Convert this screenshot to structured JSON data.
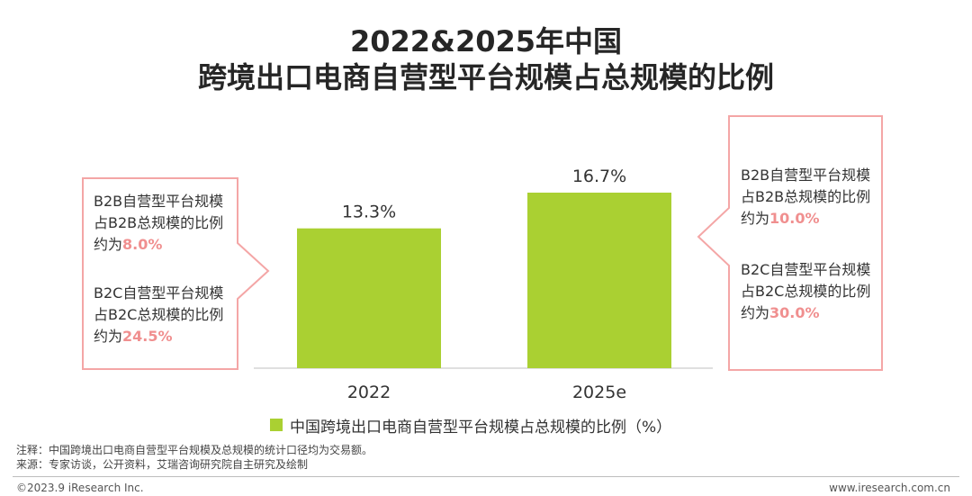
{
  "title": {
    "line1": "2022&2025年中国",
    "line2": "跨境出口电商自营型平台规模占总规模的比例"
  },
  "chart_data": {
    "type": "bar",
    "categories": [
      "2022",
      "2025e"
    ],
    "values": [
      13.3,
      16.7
    ],
    "data_labels": [
      "13.3%",
      "16.7%"
    ],
    "series": [
      {
        "name": "中国跨境出口电商自营型平台规模占总规模的比例（%）",
        "values": [
          13.3,
          16.7
        ]
      }
    ],
    "ylim": [
      0,
      20
    ],
    "grid": false,
    "legend": "bottom",
    "bar_color": "#aad032"
  },
  "callouts": {
    "left": {
      "b2b_line1": "B2B自营型平台规模",
      "b2b_line2": "占B2B总规模的比例",
      "b2b_prefix": "约为",
      "b2b_value": "8.0%",
      "b2c_line1": "B2C自营型平台规模",
      "b2c_line2": "占B2C总规模的比例",
      "b2c_prefix": "约为",
      "b2c_value": "24.5%"
    },
    "right": {
      "b2b_line1": "B2B自营型平台规模",
      "b2b_line2": "占B2B总规模的比例",
      "b2b_prefix": "约为",
      "b2b_value": "10.0%",
      "b2c_line1": "B2C自营型平台规模",
      "b2c_line2": "占B2C总规模的比例",
      "b2c_prefix": "约为",
      "b2c_value": "30.0%"
    },
    "border_color": "#f4a6a6",
    "highlight_color": "#f08f8f"
  },
  "legend": {
    "label": "中国跨境出口电商自营型平台规模占总规模的比例（%）"
  },
  "notes": {
    "note": "注释：中国跨境出口电商自营型平台规模及总规模的统计口径均为交易额。",
    "source": "来源：专家访谈，公开资料，艾瑞咨询研究院自主研究及绘制"
  },
  "footer": {
    "left": "©2023.9 iResearch Inc.",
    "right": "www.iresearch.com.cn"
  }
}
